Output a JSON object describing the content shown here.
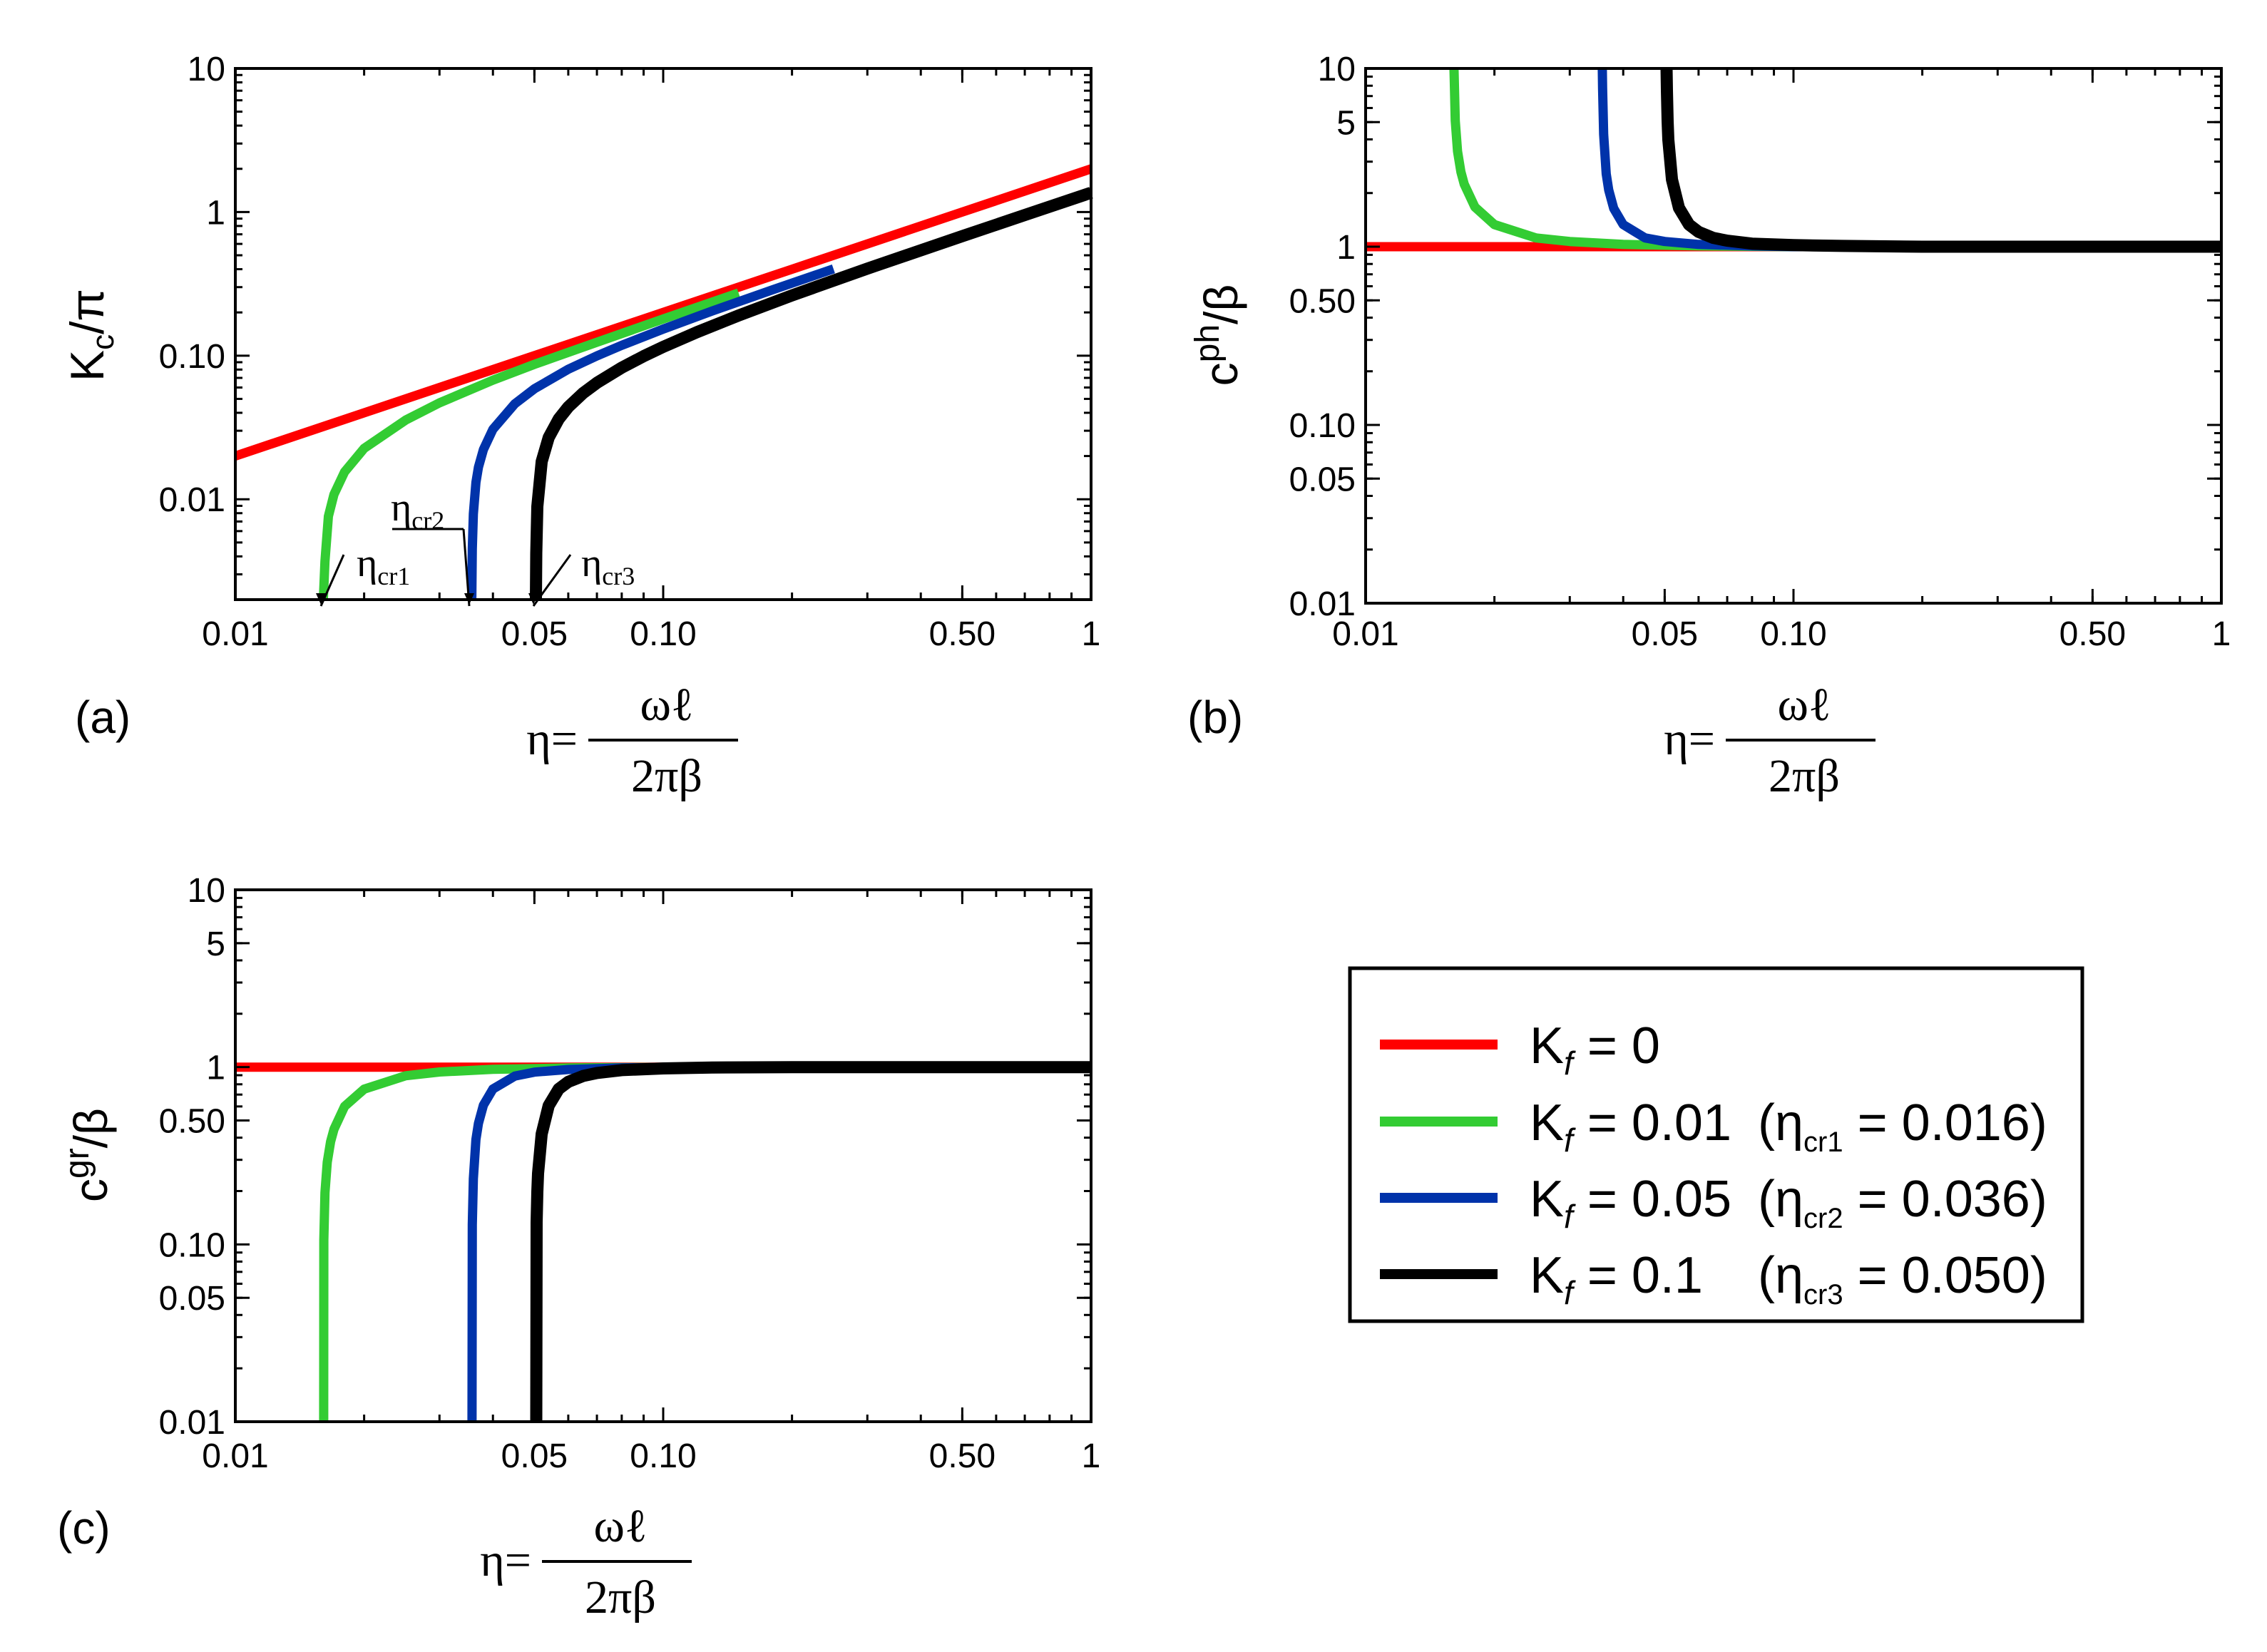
{
  "chart_data": [
    {
      "id": "a",
      "type": "line",
      "panel_label": "(a)",
      "ylabel": {
        "main": "K",
        "sub": "c",
        "rest": "/π"
      },
      "xlabel": {
        "lhs": "η=",
        "num": "ωℓ",
        "den": "2πβ"
      },
      "x_scale": "log",
      "y_scale": "log",
      "xlim": [
        0.01,
        1
      ],
      "ylim": [
        0.002,
        10
      ],
      "xticks": [
        {
          "v": 0.01,
          "label": "0.01"
        },
        {
          "v": 0.05,
          "label": "0.05"
        },
        {
          "v": 0.1,
          "label": "0.10"
        },
        {
          "v": 0.5,
          "label": "0.50"
        },
        {
          "v": 1,
          "label": "1"
        }
      ],
      "yticks": [
        {
          "v": 0.01,
          "label": "0.01"
        },
        {
          "v": 0.1,
          "label": "0.10"
        },
        {
          "v": 1,
          "label": "1"
        },
        {
          "v": 10,
          "label": "10"
        }
      ],
      "annotations": [
        {
          "text": "η",
          "sub": "cr1",
          "x": 0.016
        },
        {
          "text": "η",
          "sub": "cr2",
          "x": 0.036
        },
        {
          "text": "η",
          "sub": "cr3",
          "x": 0.05
        }
      ],
      "series": [
        {
          "name": "Kf = 0",
          "color": "#ff0000",
          "x": [
            0.01,
            0.02,
            0.05,
            0.1,
            0.2,
            0.5,
            1.0
          ],
          "y": [
            0.02,
            0.04,
            0.1,
            0.2,
            0.4,
            1.0,
            2.0
          ]
        },
        {
          "name": "Kf = 0.01",
          "color": "#33cc33",
          "x": [
            0.01606,
            0.0162,
            0.0165,
            0.017,
            0.018,
            0.02,
            0.025,
            0.03,
            0.04,
            0.05,
            0.07,
            0.1,
            0.15
          ],
          "y": [
            0.002,
            0.0037,
            0.0076,
            0.0108,
            0.0155,
            0.0226,
            0.0356,
            0.0469,
            0.0675,
            0.087,
            0.124,
            0.1799,
            0.2732
          ]
        },
        {
          "name": "Kf = 0.05",
          "color": "#0033aa",
          "x": [
            0.0357,
            0.0358,
            0.036,
            0.0365,
            0.037,
            0.038,
            0.04,
            0.045,
            0.05,
            0.06,
            0.07,
            0.08,
            0.1,
            0.13,
            0.18,
            0.25
          ],
          "y": [
            0.002,
            0.0045,
            0.0079,
            0.0131,
            0.0167,
            0.0222,
            0.0307,
            0.0462,
            0.0588,
            0.0804,
            0.0997,
            0.118,
            0.1531,
            0.2043,
            0.2873,
            0.4021
          ]
        },
        {
          "name": "Kf = 0.1",
          "color": "#000000",
          "x": [
            0.0504,
            0.0505,
            0.0508,
            0.052,
            0.054,
            0.057,
            0.06,
            0.065,
            0.07,
            0.08,
            0.09,
            0.1,
            0.12,
            0.15,
            0.2,
            0.3,
            0.5,
            0.7,
            1.0
          ],
          "y": [
            0.002,
            0.0042,
            0.0089,
            0.0183,
            0.0269,
            0.0362,
            0.0439,
            0.0549,
            0.0647,
            0.0825,
            0.0991,
            0.1151,
            0.1459,
            0.1904,
            0.2628,
            0.4038,
            0.6796,
            0.9533,
            1.3627
          ]
        }
      ]
    },
    {
      "id": "b",
      "type": "line",
      "panel_label": "(b)",
      "ylabel": {
        "main": "c",
        "sup": "ph",
        "rest": "/β"
      },
      "xlabel": {
        "lhs": "η=",
        "num": "ωℓ",
        "den": "2πβ"
      },
      "x_scale": "log",
      "y_scale": "log",
      "xlim": [
        0.01,
        1
      ],
      "ylim": [
        0.01,
        10
      ],
      "xticks": [
        {
          "v": 0.01,
          "label": "0.01"
        },
        {
          "v": 0.05,
          "label": "0.05"
        },
        {
          "v": 0.1,
          "label": "0.10"
        },
        {
          "v": 0.5,
          "label": "0.50"
        },
        {
          "v": 1,
          "label": "1"
        }
      ],
      "yticks": [
        {
          "v": 0.01,
          "label": "0.01"
        },
        {
          "v": 0.05,
          "label": "0.05"
        },
        {
          "v": 0.1,
          "label": "0.10"
        },
        {
          "v": 0.5,
          "label": "0.50"
        },
        {
          "v": 1,
          "label": "1"
        },
        {
          "v": 5,
          "label": "5"
        },
        {
          "v": 10,
          "label": "10"
        }
      ],
      "series": [
        {
          "name": "Kf = 0",
          "color": "#ff0000",
          "x": [
            0.01,
            1.0
          ],
          "y": [
            1.0,
            1.0
          ]
        },
        {
          "name": "Kf = 0.01",
          "color": "#33cc33",
          "x": [
            0.01609,
            0.0161,
            0.0162,
            0.0164,
            0.0167,
            0.017,
            0.018,
            0.02,
            0.025,
            0.03,
            0.04,
            0.06,
            0.1,
            0.2,
            0.3
          ],
          "y": [
            10.0,
            9.4,
            5.09,
            3.43,
            2.63,
            2.24,
            1.67,
            1.33,
            1.12,
            1.07,
            1.03,
            1.01,
            1.0,
            1.0,
            1.0
          ]
        },
        {
          "name": "Kf = 0.05",
          "color": "#0033aa",
          "x": [
            0.03574,
            0.0358,
            0.036,
            0.0365,
            0.037,
            0.038,
            0.04,
            0.045,
            0.05,
            0.06,
            0.08,
            0.1,
            0.15,
            0.25,
            0.4
          ],
          "y": [
            10.0,
            7.75,
            4.26,
            2.56,
            2.08,
            1.64,
            1.33,
            1.12,
            1.07,
            1.03,
            1.01,
            1.0,
            1.0,
            1.0,
            1.0
          ]
        },
        {
          "name": "Kf = 0.1",
          "color": "#000000",
          "x": [
            0.05051,
            0.0506,
            0.0508,
            0.051,
            0.052,
            0.054,
            0.057,
            0.06,
            0.065,
            0.07,
            0.08,
            0.1,
            0.13,
            0.2,
            0.4,
            1.0
          ],
          "y": [
            10.0,
            7.52,
            5.06,
            3.98,
            2.38,
            1.65,
            1.33,
            1.21,
            1.12,
            1.08,
            1.04,
            1.02,
            1.01,
            1.0,
            1.0,
            1.0
          ]
        }
      ]
    },
    {
      "id": "c",
      "type": "line",
      "panel_label": "(c)",
      "ylabel": {
        "main": "c",
        "sup": "gr",
        "rest": "/β"
      },
      "xlabel": {
        "lhs": "η=",
        "num": "ωℓ",
        "den": "2πβ"
      },
      "x_scale": "log",
      "y_scale": "log",
      "xlim": [
        0.01,
        1
      ],
      "ylim": [
        0.01,
        10
      ],
      "xticks": [
        {
          "v": 0.01,
          "label": "0.01"
        },
        {
          "v": 0.05,
          "label": "0.05"
        },
        {
          "v": 0.1,
          "label": "0.10"
        },
        {
          "v": 0.5,
          "label": "0.50"
        },
        {
          "v": 1,
          "label": "1"
        }
      ],
      "yticks": [
        {
          "v": 0.01,
          "label": "0.01"
        },
        {
          "v": 0.05,
          "label": "0.05"
        },
        {
          "v": 0.1,
          "label": "0.10"
        },
        {
          "v": 0.5,
          "label": "0.50"
        },
        {
          "v": 1,
          "label": "1"
        },
        {
          "v": 5,
          "label": "5"
        },
        {
          "v": 10,
          "label": "10"
        }
      ],
      "series": [
        {
          "name": "Kf = 0",
          "color": "#ff0000",
          "x": [
            0.01,
            1.0
          ],
          "y": [
            1.0,
            1.0
          ]
        },
        {
          "name": "Kf = 0.01",
          "color": "#33cc33",
          "x": [
            0.01609,
            0.0161,
            0.0162,
            0.0164,
            0.0167,
            0.017,
            0.018,
            0.02,
            0.025,
            0.03,
            0.04,
            0.06,
            0.1,
            0.2,
            0.3
          ],
          "y": [
            0.01,
            0.106,
            0.196,
            0.291,
            0.38,
            0.446,
            0.6,
            0.751,
            0.894,
            0.939,
            0.971,
            0.99,
            0.997,
            1.0,
            1.0
          ]
        },
        {
          "name": "Kf = 0.05",
          "color": "#0033aa",
          "x": [
            0.03574,
            0.0358,
            0.036,
            0.0365,
            0.037,
            0.038,
            0.04,
            0.045,
            0.05,
            0.06,
            0.08,
            0.1,
            0.15,
            0.25,
            0.4
          ],
          "y": [
            0.01,
            0.129,
            0.235,
            0.391,
            0.481,
            0.61,
            0.752,
            0.89,
            0.937,
            0.97,
            0.99,
            0.997,
            1.0,
            1.0,
            1.0
          ]
        },
        {
          "name": "Kf = 0.1",
          "color": "#000000",
          "x": [
            0.05051,
            0.0506,
            0.0508,
            0.051,
            0.052,
            0.054,
            0.057,
            0.06,
            0.065,
            0.07,
            0.08,
            0.1,
            0.13,
            0.2,
            0.4,
            1.0
          ],
          "y": [
            0.01,
            0.133,
            0.198,
            0.251,
            0.42,
            0.606,
            0.753,
            0.826,
            0.891,
            0.927,
            0.962,
            0.983,
            0.995,
            1.0,
            1.0,
            1.0
          ]
        }
      ]
    }
  ],
  "legend": {
    "entries": [
      {
        "color": "#ff0000",
        "label": "K",
        "sub": "f",
        "value": "= 0",
        "crit": null
      },
      {
        "color": "#33cc33",
        "label": "K",
        "sub": "f",
        "value": "= 0.01",
        "crit": {
          "open": "(η",
          "sub": "cr1",
          "val": "= 0.016)"
        }
      },
      {
        "color": "#0033aa",
        "label": "K",
        "sub": "f",
        "value": "= 0.05",
        "crit": {
          "open": "(η",
          "sub": "cr2",
          "val": "= 0.036)"
        }
      },
      {
        "color": "#000000",
        "label": "K",
        "sub": "f",
        "value": "= 0.1",
        "crit": {
          "open": "(η",
          "sub": "cr3",
          "val": "= 0.050)"
        }
      }
    ]
  }
}
